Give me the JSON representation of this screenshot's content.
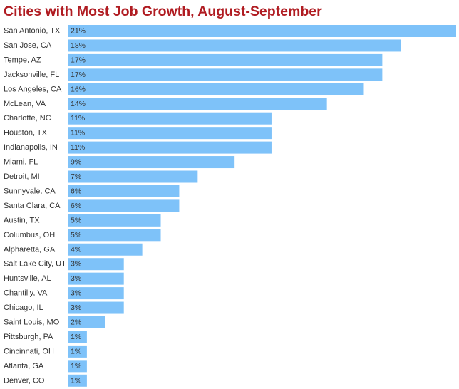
{
  "colors": {
    "title": "#b01c22",
    "bar": "#7ec2f9",
    "text": "#333333"
  },
  "chart_data": {
    "type": "bar",
    "orientation": "horizontal",
    "title": "Cities with Most Job Growth, August-September",
    "xlabel": "",
    "ylabel": "",
    "grid": false,
    "legend": "none",
    "xlim": [
      0,
      21
    ],
    "value_suffix": "%",
    "categories": [
      "San Antonio, TX",
      "San Jose, CA",
      "Tempe, AZ",
      "Jacksonville, FL",
      "Los Angeles, CA",
      "McLean, VA",
      "Charlotte, NC",
      "Houston, TX",
      "Indianapolis, IN",
      "Miami, FL",
      "Detroit, MI",
      "Sunnyvale, CA",
      "Santa Clara, CA",
      "Austin, TX",
      "Columbus, OH",
      "Alpharetta, GA",
      "Salt Lake City, UT",
      "Huntsville, AL",
      "Chantilly, VA",
      "Chicago, IL",
      "Saint Louis, MO",
      "Pittsburgh, PA",
      "Cincinnati, OH",
      "Atlanta, GA",
      "Denver, CO"
    ],
    "values": [
      21,
      18,
      17,
      17,
      16,
      14,
      11,
      11,
      11,
      9,
      7,
      6,
      6,
      5,
      5,
      4,
      3,
      3,
      3,
      3,
      2,
      1,
      1,
      1,
      1
    ],
    "data_labels": [
      "21%",
      "18%",
      "17%",
      "17%",
      "16%",
      "14%",
      "11%",
      "11%",
      "11%",
      "9%",
      "7%",
      "6%",
      "6%",
      "5%",
      "5%",
      "4%",
      "3%",
      "3%",
      "3%",
      "3%",
      "2%",
      "1%",
      "1%",
      "1%",
      "1%"
    ]
  }
}
